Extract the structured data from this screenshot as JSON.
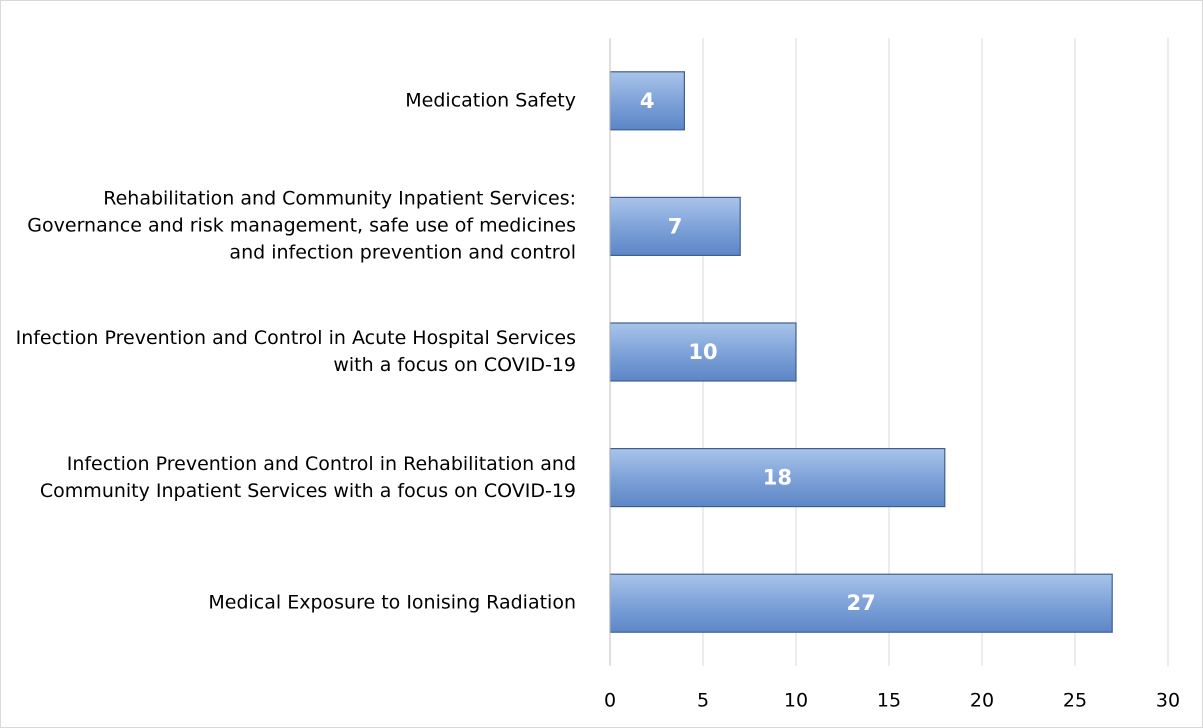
{
  "chart_data": {
    "type": "bar",
    "orientation": "horizontal",
    "categories": [
      "Medication Safety",
      "Rehabilitation and Community Inpatient Services: Governance and risk management, safe use of medicines and infection prevention and control",
      "Infection Prevention and Control in Acute Hospital Services with a focus on COVID-19",
      "Infection Prevention and Control in Rehabilitation and Community Inpatient Services with a focus on COVID-19",
      "Medical Exposure to Ionising Radiation"
    ],
    "values": [
      4,
      7,
      10,
      18,
      27
    ],
    "color": "#6f96d1",
    "xlim": [
      0,
      30
    ],
    "xticks": [
      0,
      5,
      10,
      15,
      20,
      25,
      30
    ],
    "grid": true
  }
}
